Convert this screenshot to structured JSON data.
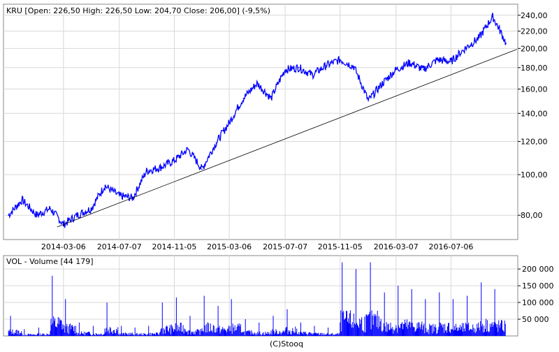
{
  "chart_data": [
    {
      "type": "line",
      "title": "KRU [Open: 226,50 High: 226,50 Low: 204,70 Close: 206,00] (-9,5%)",
      "xlabel": "",
      "ylabel": "",
      "scale": "log",
      "ylim": [
        70,
        255
      ],
      "y_ticks": [
        "80,00",
        "100,00",
        "120,00",
        "140,00",
        "160,00",
        "180,00",
        "200,00",
        "220,00",
        "240,00"
      ],
      "y_tick_values": [
        80,
        100,
        120,
        140,
        160,
        180,
        200,
        220,
        240
      ],
      "x_ticks": [
        "2014-03-06",
        "2014-07-07",
        "2014-11-05",
        "2015-03-06",
        "2015-07-07",
        "2015-11-05",
        "2016-03-07",
        "2016-07-06"
      ],
      "grid": true,
      "series": [
        {
          "name": "KRU",
          "color": "#0000ff",
          "x": [
            "2013-11-05",
            "2013-12-05",
            "2014-01-06",
            "2014-02-05",
            "2014-03-06",
            "2014-04-05",
            "2014-05-06",
            "2014-06-05",
            "2014-07-07",
            "2014-08-06",
            "2014-09-05",
            "2014-10-05",
            "2014-11-05",
            "2014-12-05",
            "2015-01-05",
            "2015-02-05",
            "2015-03-06",
            "2015-04-06",
            "2015-05-06",
            "2015-06-06",
            "2015-07-07",
            "2015-08-06",
            "2015-09-05",
            "2015-10-05",
            "2015-11-05",
            "2015-12-05",
            "2016-01-06",
            "2016-02-06",
            "2016-03-07",
            "2016-04-06",
            "2016-05-06",
            "2016-06-06",
            "2016-07-06",
            "2016-08-06",
            "2016-09-06",
            "2016-10-06",
            "2016-11-04"
          ],
          "values": [
            80,
            87,
            80,
            83,
            76,
            80,
            83,
            94,
            89,
            88,
            102,
            104,
            108,
            115,
            103,
            119,
            133,
            152,
            165,
            152,
            178,
            180,
            173,
            182,
            188,
            181,
            150,
            165,
            178,
            185,
            178,
            188,
            186,
            200,
            212,
            238,
            206
          ]
        },
        {
          "name": "trend",
          "color": "#000000",
          "x": [
            "2014-02-20",
            "2016-11-28"
          ],
          "values": [
            75,
            199
          ]
        }
      ]
    },
    {
      "type": "bar",
      "title": "VOL - Volume [44 179]",
      "y_ticks": [
        "50 000",
        "100 000",
        "150 000",
        "200 000"
      ],
      "y_tick_values": [
        50000,
        100000,
        150000,
        200000
      ],
      "ylim": [
        0,
        240000
      ],
      "color": "#0000ff",
      "x": [
        "2013-11-05",
        "2013-12-05",
        "2014-01-06",
        "2014-02-05",
        "2014-03-06",
        "2014-04-05",
        "2014-05-06",
        "2014-06-05",
        "2014-07-07",
        "2014-08-06",
        "2014-09-05",
        "2014-10-05",
        "2014-11-05",
        "2014-12-05",
        "2015-01-05",
        "2015-02-05",
        "2015-03-06",
        "2015-04-06",
        "2015-05-06",
        "2015-06-06",
        "2015-07-07",
        "2015-08-06",
        "2015-09-05",
        "2015-10-05",
        "2015-11-05",
        "2015-12-05",
        "2016-01-06",
        "2016-02-06",
        "2016-03-07",
        "2016-04-06",
        "2016-05-06",
        "2016-06-06",
        "2016-07-06",
        "2016-08-06",
        "2016-09-06",
        "2016-10-06",
        "2016-11-04"
      ],
      "values": [
        60000,
        20000,
        25000,
        180000,
        110000,
        40000,
        30000,
        100000,
        30000,
        25000,
        30000,
        100000,
        115000,
        60000,
        120000,
        90000,
        110000,
        50000,
        40000,
        60000,
        80000,
        40000,
        30000,
        25000,
        220000,
        200000,
        220000,
        130000,
        150000,
        140000,
        110000,
        130000,
        110000,
        120000,
        160000,
        140000,
        44179
      ]
    }
  ],
  "footer": "(C)Stooq"
}
